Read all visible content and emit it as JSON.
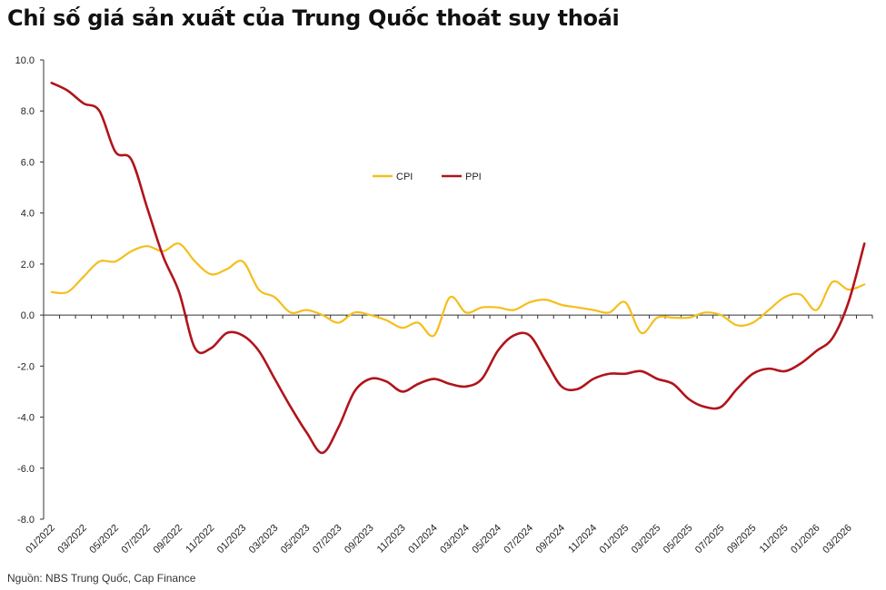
{
  "title": "Chỉ số giá sản xuất của Trung Quốc thoát suy thoái",
  "source": "Nguồn: NBS Trung Quốc, Cap Finance",
  "colors": {
    "cpi": "#F5BE1B",
    "ppi": "#B0141C",
    "axis": "#333333"
  },
  "chart_data": {
    "type": "line",
    "title": "Chỉ số giá sản xuất của Trung Quốc thoát suy thoái",
    "xlabel": "",
    "ylabel": "",
    "ylim": [
      -8.0,
      10.0
    ],
    "y_ticks": [
      "10.0",
      "8.0",
      "6.0",
      "4.0",
      "2.0",
      "0.0",
      "-2.0",
      "-4.0",
      "-6.0",
      "-8.0"
    ],
    "grid": false,
    "legend_position": "center-left",
    "categories": [
      "01/2022",
      "02/2022",
      "03/2022",
      "04/2022",
      "05/2022",
      "06/2022",
      "07/2022",
      "08/2022",
      "09/2022",
      "10/2022",
      "11/2022",
      "12/2022",
      "01/2023",
      "02/2023",
      "03/2023",
      "04/2023",
      "05/2023",
      "06/2023",
      "07/2023",
      "08/2023",
      "09/2023",
      "10/2023",
      "11/2023",
      "12/2023",
      "01/2024",
      "02/2024",
      "03/2024",
      "04/2024",
      "05/2024",
      "06/2024",
      "07/2024",
      "08/2024",
      "09/2024",
      "10/2024",
      "11/2024",
      "12/2024",
      "01/2025",
      "02/2025",
      "03/2025",
      "04/2025",
      "05/2025",
      "06/2025",
      "07/2025",
      "08/2025",
      "09/2025",
      "10/2025",
      "11/2025",
      "12/2025",
      "01/2026",
      "02/2026",
      "03/2026",
      "04/2026"
    ],
    "x_tick_labels": [
      "01/2022",
      "03/2022",
      "05/2022",
      "07/2022",
      "09/2022",
      "11/2022",
      "01/2023",
      "03/2023",
      "05/2023",
      "07/2023",
      "09/2023",
      "11/2023",
      "01/2024",
      "03/2024",
      "05/2024",
      "07/2024",
      "09/2024",
      "11/2024",
      "01/2025",
      "03/2025",
      "05/2025",
      "07/2025",
      "09/2025",
      "11/2025",
      "01/2026",
      "03/2026"
    ],
    "series": [
      {
        "name": "CPI",
        "values": [
          0.9,
          0.9,
          1.5,
          2.1,
          2.1,
          2.5,
          2.7,
          2.5,
          2.8,
          2.1,
          1.6,
          1.8,
          2.1,
          1.0,
          0.7,
          0.1,
          0.2,
          0.0,
          -0.3,
          0.1,
          0.0,
          -0.2,
          -0.5,
          -0.3,
          -0.8,
          0.7,
          0.1,
          0.3,
          0.3,
          0.2,
          0.5,
          0.6,
          0.4,
          0.3,
          0.2,
          0.1,
          0.5,
          -0.7,
          -0.1,
          -0.1,
          -0.1,
          0.1,
          0.0,
          -0.4,
          -0.3,
          0.2,
          0.7,
          0.8,
          0.2,
          1.3,
          1.0,
          1.2
        ]
      },
      {
        "name": "PPI",
        "values": [
          9.1,
          8.8,
          8.3,
          8.0,
          6.4,
          6.1,
          4.2,
          2.3,
          0.9,
          -1.3,
          -1.3,
          -0.7,
          -0.8,
          -1.4,
          -2.5,
          -3.6,
          -4.6,
          -5.4,
          -4.4,
          -3.0,
          -2.5,
          -2.6,
          -3.0,
          -2.7,
          -2.5,
          -2.7,
          -2.8,
          -2.5,
          -1.4,
          -0.8,
          -0.8,
          -1.8,
          -2.8,
          -2.9,
          -2.5,
          -2.3,
          -2.3,
          -2.2,
          -2.5,
          -2.7,
          -3.3,
          -3.6,
          -3.6,
          -2.9,
          -2.3,
          -2.1,
          -2.2,
          -1.9,
          -1.4,
          -0.9,
          0.5,
          2.8
        ]
      }
    ]
  }
}
